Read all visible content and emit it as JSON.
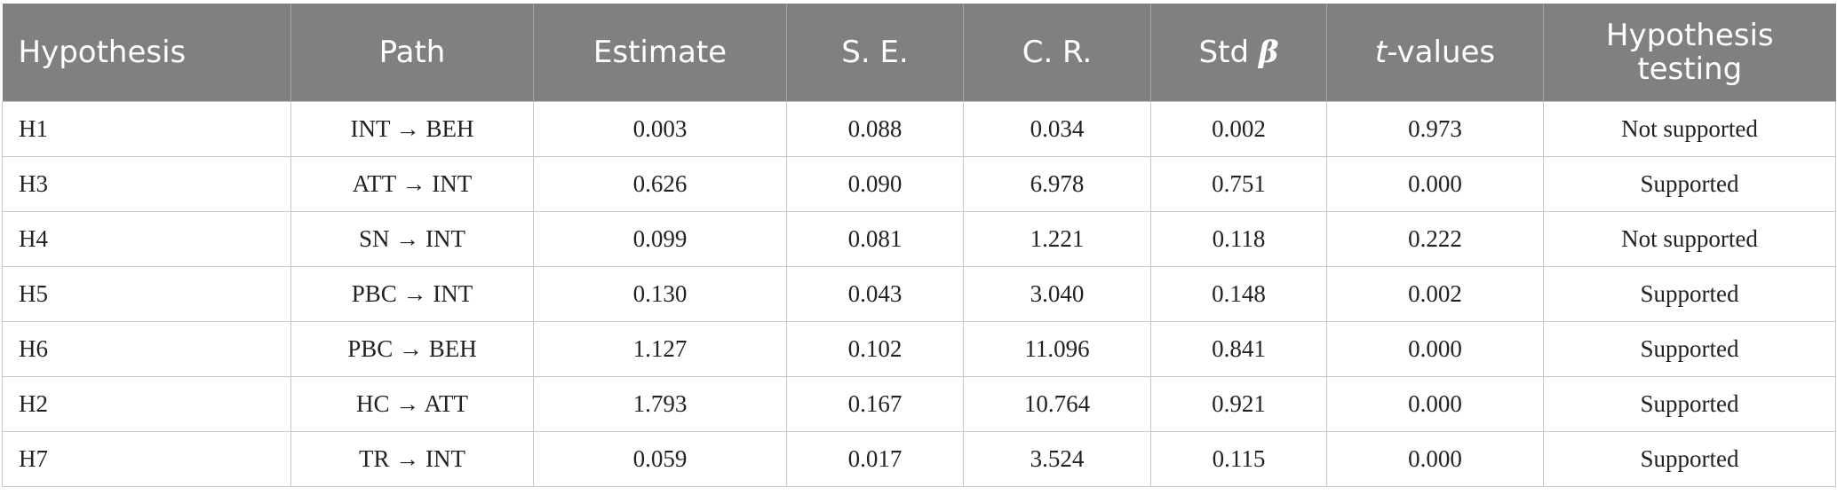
{
  "table": {
    "headers": [
      {
        "label": "Hypothesis"
      },
      {
        "label": "Path"
      },
      {
        "label": "Estimate"
      },
      {
        "label": "S. E."
      },
      {
        "label": "C. R."
      },
      {
        "label": "Std ",
        "symbol": "β"
      },
      {
        "prefix": "t",
        "label": "-values"
      },
      {
        "label": "Hypothesis testing"
      }
    ],
    "rows": [
      [
        "H1",
        "INT → BEH",
        "0.003",
        "0.088",
        "0.034",
        "0.002",
        "0.973",
        "Not supported"
      ],
      [
        "H3",
        "ATT → INT",
        "0.626",
        "0.090",
        "6.978",
        "0.751",
        "0.000",
        "Supported"
      ],
      [
        "H4",
        "SN → INT",
        "0.099",
        "0.081",
        "1.221",
        "0.118",
        "0.222",
        "Not supported"
      ],
      [
        "H5",
        "PBC → INT",
        "0.130",
        "0.043",
        "3.040",
        "0.148",
        "0.002",
        "Supported"
      ],
      [
        "H6",
        "PBC → BEH",
        "1.127",
        "0.102",
        "11.096",
        "0.841",
        "0.000",
        "Supported"
      ],
      [
        "H2",
        "HC → ATT",
        "1.793",
        "0.167",
        "10.764",
        "0.921",
        "0.000",
        "Supported"
      ],
      [
        "H7",
        "TR → INT",
        "0.059",
        "0.017",
        "3.524",
        "0.115",
        "0.000",
        "Supported"
      ]
    ]
  },
  "colors": {
    "header_bg": "#808080",
    "header_text": "#ffffff",
    "border": "#c8c8c8"
  }
}
